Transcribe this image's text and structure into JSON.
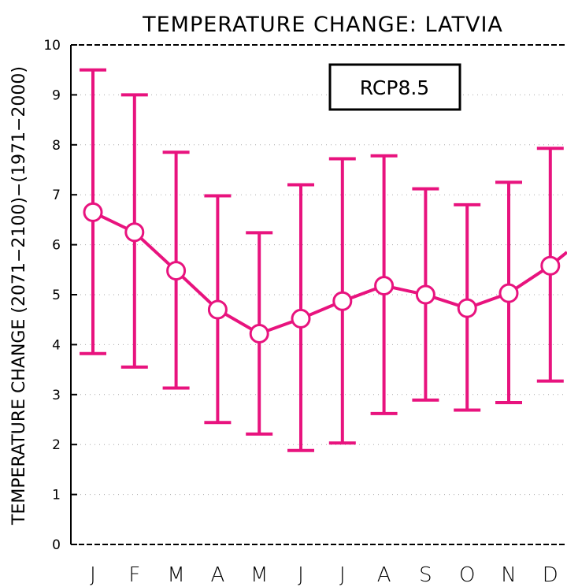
{
  "chart_data": {
    "type": "line",
    "title": "TEMPERATURE CHANGE: LATVIA",
    "ylabel": "TEMPERATURE CHANGE (2071−2100)−(1971−2000)",
    "xlabel": "",
    "categories": [
      "J",
      "F",
      "M",
      "A",
      "M",
      "J",
      "J",
      "A",
      "S",
      "O",
      "N",
      "D"
    ],
    "ylim": [
      0,
      10
    ],
    "yticks": [
      0,
      1,
      2,
      3,
      4,
      5,
      6,
      7,
      8,
      9,
      10
    ],
    "grid": true,
    "legend": "top-center",
    "series": [
      {
        "name": "RCP8.5",
        "color": "#e8137e",
        "values": [
          6.65,
          6.25,
          5.48,
          4.7,
          4.22,
          4.52,
          4.87,
          5.18,
          5.0,
          4.73,
          5.03,
          5.58
        ],
        "lower": [
          3.82,
          3.55,
          3.13,
          2.44,
          2.21,
          1.88,
          2.03,
          2.62,
          2.89,
          2.69,
          2.84,
          3.27
        ],
        "upper": [
          9.5,
          9.0,
          7.85,
          6.98,
          6.24,
          7.2,
          7.72,
          7.78,
          7.12,
          6.8,
          7.25,
          7.93
        ]
      }
    ]
  }
}
